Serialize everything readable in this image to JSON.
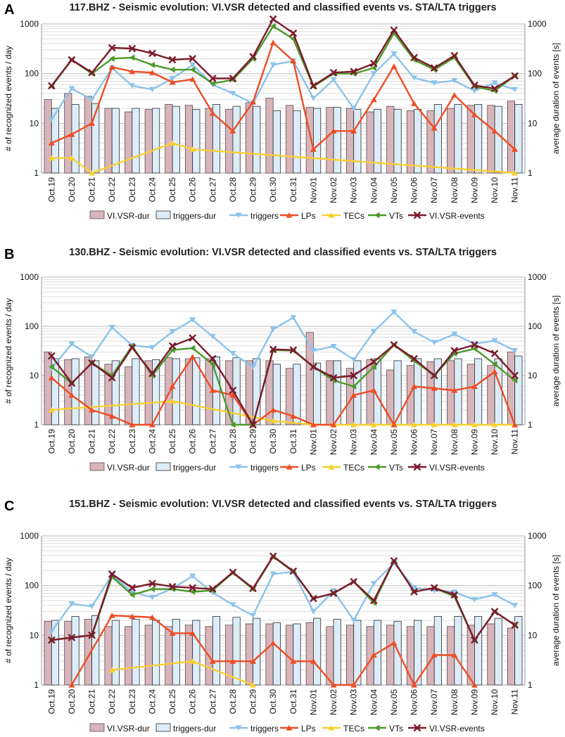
{
  "dates": [
    "Oct.19",
    "Oct.20",
    "Oct.21",
    "Oct.22",
    "Oct.23",
    "Oct.24",
    "Oct.25",
    "Oct.26",
    "Oct.27",
    "Oct.28",
    "Oct.29",
    "Oct.30",
    "Oct.31",
    "Nov.01",
    "Nov.02",
    "Nov.03",
    "Nov.04",
    "Nov.05",
    "Nov.06",
    "Nov.07",
    "Nov.08",
    "Nov.09",
    "Nov.10",
    "Nov.11"
  ],
  "ylabel_left": "# of recognized events / day",
  "ylabel_right": "average duration of events [s]",
  "ytick_labels": [
    "1",
    "10",
    "100",
    "1000"
  ],
  "legend": {
    "vlvsr_dur": "VI.VSR-dur",
    "triggers_dur": "triggers-dur",
    "triggers": "triggers",
    "lps": "LPs",
    "tecs": "TECs",
    "vts": "VTs",
    "vlvsr_events": "VI.VSR-events"
  },
  "colors": {
    "vlvsr_dur": "#d7b5bb",
    "triggers_dur": "#dcecf8",
    "triggers": "#8cc3ea",
    "lps": "#ee4d25",
    "tecs": "#f7cf2f",
    "vts": "#4c9a2a",
    "vlvsr_events": "#7b1b2c"
  },
  "chart_data": [
    {
      "panel_letter": "A",
      "type": "bar+line",
      "title": "117.BHZ - Seismic evolution: VI.VSR detected and classified events vs. STA/LTA triggers",
      "ylim": [
        1,
        1000
      ],
      "yscale": "log",
      "bar_series": {
        "vlvsr_dur": [
          30,
          40,
          35,
          20,
          17,
          19,
          24,
          23,
          20,
          19,
          26,
          32,
          23,
          21,
          21,
          20,
          17,
          22,
          18,
          18,
          20,
          23,
          23,
          28
        ],
        "triggers_dur": [
          20,
          24,
          25,
          20,
          20,
          20,
          22,
          19,
          24,
          22,
          22,
          18,
          18,
          20,
          21,
          19,
          19,
          19,
          19,
          24,
          24,
          24,
          22,
          24
        ]
      },
      "line_series": {
        "triggers": [
          12,
          50,
          30,
          130,
          57,
          48,
          80,
          150,
          60,
          40,
          25,
          150,
          180,
          32,
          75,
          20,
          100,
          250,
          82,
          65,
          72,
          45,
          65,
          48
        ],
        "lps": [
          4,
          6,
          10,
          135,
          110,
          105,
          67,
          77,
          16,
          7,
          27,
          420,
          180,
          3,
          7,
          7,
          30,
          140,
          25,
          8,
          37,
          15,
          7,
          3
        ],
        "tecs": [
          2,
          2,
          1,
          null,
          null,
          null,
          4,
          3,
          null,
          null,
          null,
          null,
          null,
          null,
          null,
          null,
          null,
          null,
          null,
          null,
          null,
          null,
          null,
          1
        ],
        "vts": [
          55,
          190,
          100,
          200,
          210,
          150,
          120,
          120,
          63,
          75,
          200,
          900,
          500,
          55,
          100,
          100,
          130,
          650,
          190,
          120,
          210,
          55,
          45,
          90
        ],
        "vlvsr_events": [
          57,
          190,
          105,
          330,
          320,
          255,
          190,
          200,
          80,
          80,
          220,
          1250,
          650,
          57,
          105,
          110,
          160,
          750,
          210,
          130,
          230,
          58,
          50,
          90
        ]
      }
    },
    {
      "panel_letter": "B",
      "type": "bar+line",
      "title": "130.BHZ - Seismic evolution: VI.VSR detected and classified events vs. STA/LTA triggers",
      "ylim": [
        1,
        1000
      ],
      "yscale": "log",
      "bar_series": {
        "vlvsr_dur": [
          30,
          21,
          24,
          17,
          15,
          20,
          23,
          22,
          22,
          20,
          20,
          20,
          14,
          75,
          20,
          14,
          21,
          13,
          16,
          19,
          20,
          17,
          16,
          30
        ],
        "triggers_dur": [
          22,
          22,
          20,
          20,
          22,
          21,
          22,
          23,
          24,
          23,
          22,
          17,
          17,
          18,
          20,
          20,
          22,
          20,
          22,
          22,
          22,
          22,
          22,
          25
        ]
      },
      "line_series": {
        "triggers": [
          14,
          44,
          24,
          95,
          41,
          37,
          78,
          135,
          62,
          28,
          15,
          87,
          150,
          32,
          39,
          21,
          78,
          195,
          78,
          47,
          69,
          44,
          51,
          32
        ],
        "lps": [
          9,
          4,
          2,
          1.5,
          1,
          1,
          6,
          24,
          5,
          4,
          1,
          2,
          1.5,
          1,
          1,
          4,
          5,
          1,
          6,
          5.5,
          5,
          6,
          12,
          1
        ],
        "tecs": [
          2,
          null,
          null,
          null,
          null,
          null,
          3,
          null,
          null,
          null,
          null,
          1.2,
          null,
          1,
          1,
          1,
          1,
          1,
          1,
          1,
          1,
          1,
          1,
          1
        ],
        "vts": [
          15,
          7,
          18,
          10,
          40,
          10,
          33,
          36,
          17,
          1,
          1,
          33,
          32,
          15,
          8,
          6,
          15,
          42,
          20,
          10,
          28,
          35,
          17,
          8
        ],
        "vlvsr_events": [
          25,
          7,
          18,
          9,
          37,
          11,
          40,
          58,
          22,
          5,
          1,
          34,
          33,
          15,
          9,
          10,
          19,
          42,
          22,
          10,
          32,
          42,
          28,
          10
        ]
      }
    },
    {
      "panel_letter": "C",
      "type": "bar+line",
      "title": "151.BHZ - Seismic evolution: VI.VSR detected and classified events vs. STA/LTA triggers",
      "ylim": [
        1,
        1000
      ],
      "yscale": "log",
      "bar_series": {
        "vlvsr_dur": [
          19,
          19,
          21,
          15,
          15,
          16,
          15,
          16,
          15,
          16,
          17,
          17,
          16,
          18,
          15,
          16,
          15,
          16,
          15,
          15,
          15,
          16,
          17,
          14
        ],
        "triggers_dur": [
          20,
          24,
          25,
          20,
          21,
          20,
          21,
          20,
          24,
          23,
          22,
          18,
          17,
          22,
          21,
          20,
          20,
          19,
          20,
          24,
          24,
          24,
          22,
          24
        ]
      },
      "line_series": {
        "triggers": [
          12,
          43,
          38,
          165,
          74,
          58,
          88,
          155,
          72,
          41,
          25,
          170,
          190,
          30,
          78,
          20,
          110,
          285,
          90,
          80,
          74,
          52,
          66,
          40
        ],
        "lps": [
          null,
          1,
          null,
          25,
          24,
          23,
          11,
          11,
          3,
          3,
          3,
          7,
          3,
          3,
          1,
          1,
          4,
          7,
          1,
          4,
          4,
          1,
          null,
          null
        ],
        "tecs": [
          null,
          null,
          null,
          2,
          null,
          null,
          null,
          3,
          null,
          null,
          1,
          null,
          null,
          null,
          null,
          null,
          null,
          null,
          null,
          null,
          null,
          null,
          null,
          null
        ],
        "vts": [
          8,
          9,
          10,
          150,
          65,
          85,
          85,
          75,
          80,
          180,
          85,
          380,
          190,
          55,
          70,
          120,
          45,
          310,
          75,
          90,
          60,
          8,
          30,
          16
        ],
        "vlvsr_events": [
          8,
          9,
          10,
          170,
          90,
          110,
          95,
          90,
          85,
          185,
          88,
          390,
          195,
          55,
          70,
          120,
          50,
          315,
          75,
          90,
          65,
          8,
          30,
          16
        ]
      }
    }
  ]
}
